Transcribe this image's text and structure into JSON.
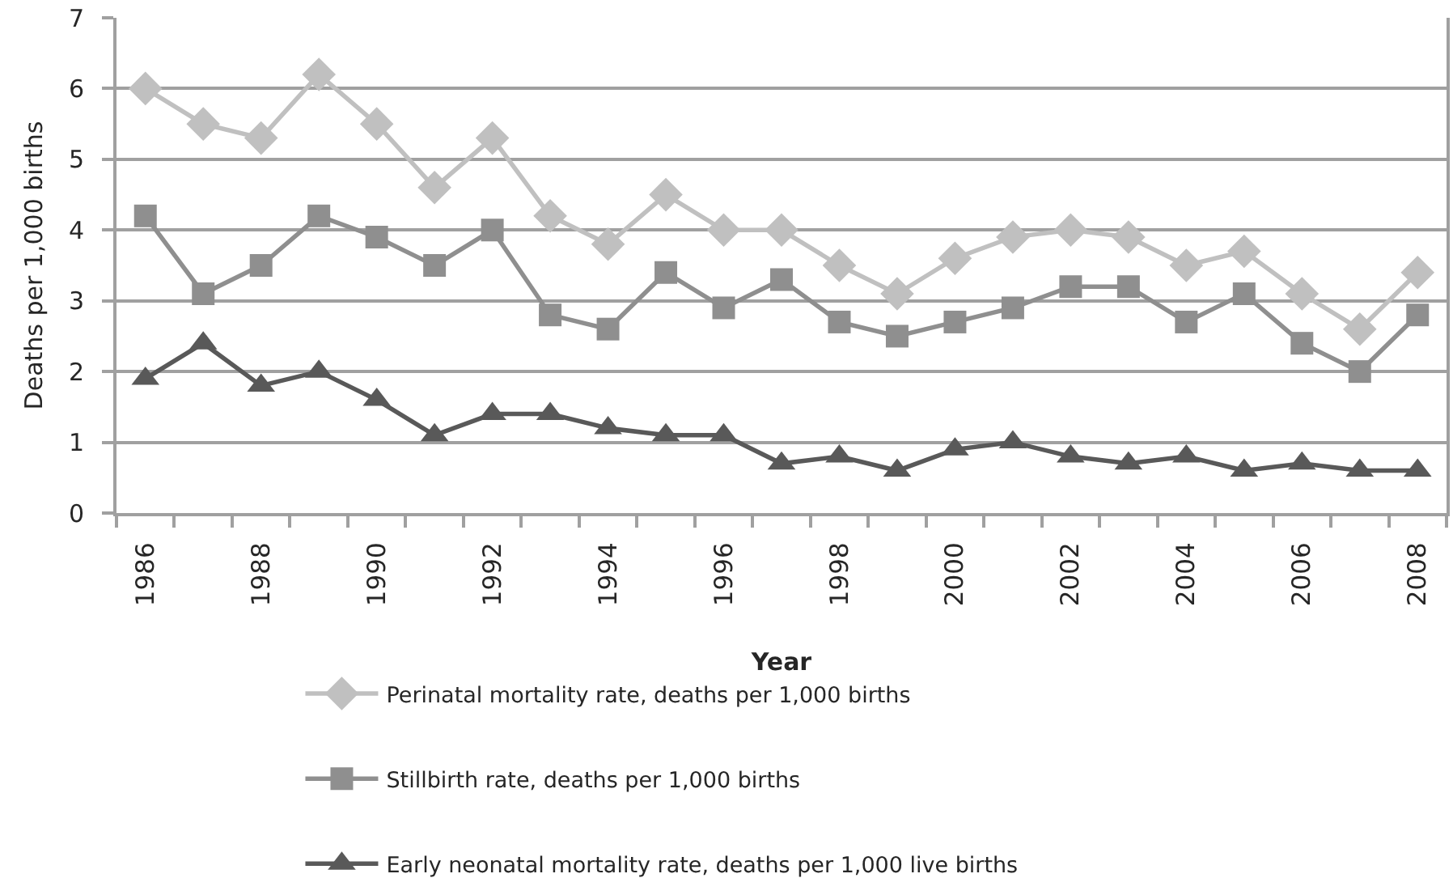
{
  "chart_data": {
    "type": "line",
    "xlabel": "Year",
    "ylabel": "Deaths per 1,000 births",
    "x": [
      1986,
      1987,
      1988,
      1989,
      1990,
      1991,
      1992,
      1993,
      1994,
      1995,
      1996,
      1997,
      1998,
      1999,
      2000,
      2001,
      2002,
      2003,
      2004,
      2005,
      2006,
      2007,
      2008
    ],
    "xlim": [
      1985.5,
      2008.5
    ],
    "xticks": [
      1986,
      1988,
      1990,
      1992,
      1994,
      1996,
      1998,
      2000,
      2002,
      2004,
      2006,
      2008
    ],
    "ylim": [
      0,
      7
    ],
    "yticks": [
      0,
      1,
      2,
      3,
      4,
      5,
      6,
      7
    ],
    "grid": "y",
    "legend": "bottom",
    "line_style": "solid",
    "series": [
      {
        "name": "Perinatal mortality rate, deaths per 1,000 births",
        "color": "#c0c0c0",
        "marker": "diamond",
        "values": [
          6.0,
          5.5,
          5.3,
          6.2,
          5.5,
          4.6,
          5.3,
          4.2,
          3.8,
          4.5,
          4.0,
          4.0,
          3.5,
          3.1,
          3.6,
          3.9,
          4.0,
          3.9,
          3.5,
          3.7,
          3.1,
          2.6,
          3.4
        ]
      },
      {
        "name": "Stillbirth rate, deaths per 1,000 births",
        "color": "#8f8f8f",
        "marker": "square",
        "values": [
          4.2,
          3.1,
          3.5,
          4.2,
          3.9,
          3.5,
          4.0,
          2.8,
          2.6,
          3.4,
          2.9,
          3.3,
          2.7,
          2.5,
          2.7,
          2.9,
          3.2,
          3.2,
          2.7,
          3.1,
          2.4,
          2.0,
          2.8
        ]
      },
      {
        "name": "Early neonatal mortality rate, deaths per 1,000 live births",
        "color": "#595959",
        "marker": "triangle",
        "values": [
          1.9,
          2.4,
          1.8,
          2.0,
          1.6,
          1.1,
          1.4,
          1.4,
          1.2,
          1.1,
          1.1,
          0.7,
          0.8,
          0.6,
          0.9,
          1.0,
          0.8,
          0.7,
          0.8,
          0.6,
          0.7,
          0.6,
          0.6
        ]
      }
    ]
  }
}
